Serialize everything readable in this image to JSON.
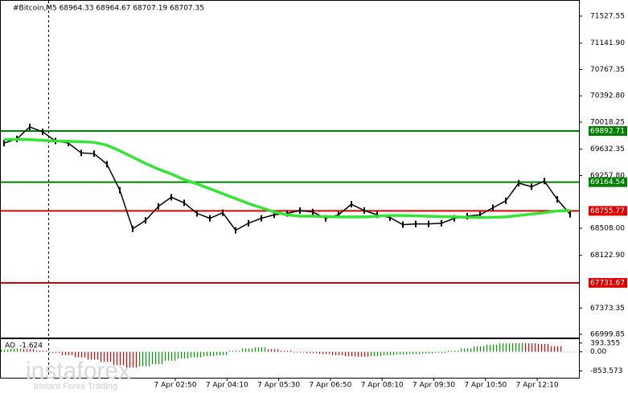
{
  "chart_data": {
    "type": "line",
    "title": "#Bitcoin,M5  68964.33 68964.67 68707.19 68707.35",
    "series": [
      {
        "name": "Price",
        "color": "#000000",
        "values": [
          69720,
          69780,
          69950,
          69880,
          69750,
          69720,
          69580,
          69570,
          69420,
          69050,
          68500,
          68620,
          68820,
          68950,
          68870,
          68720,
          68650,
          68730,
          68480,
          68580,
          68650,
          68700,
          68720,
          68760,
          68740,
          68650,
          68700,
          68850,
          68760,
          68700,
          68660,
          68560,
          68570,
          68570,
          68580,
          68650,
          68680,
          68700,
          68800,
          68900,
          69150,
          69100,
          69180,
          68920,
          68707.35
        ]
      },
      {
        "name": "MA",
        "color": "#33e633",
        "values": [
          69770,
          69775,
          69770,
          69760,
          69750,
          69745,
          69740,
          69730,
          69690,
          69610,
          69520,
          69430,
          69350,
          69280,
          69200,
          69140,
          69070,
          69000,
          68930,
          68860,
          68800,
          68740,
          68700,
          68680,
          68680,
          68675,
          68670,
          68670,
          68670,
          68680,
          68690,
          68690,
          68685,
          68680,
          68675,
          68670,
          68665,
          68660,
          68665,
          68670,
          68690,
          68710,
          68730,
          68755,
          68760
        ]
      }
    ],
    "levels": [
      {
        "value": 69892.71,
        "color": "#008000"
      },
      {
        "value": 69164.54,
        "color": "#008000"
      },
      {
        "value": 68755.77,
        "color": "#e00000"
      },
      {
        "value": 67731.67,
        "color": "#e00000"
      }
    ],
    "ylim": [
      66942,
      71699
    ],
    "yticks": [
      71527.55,
      {
        "value": 71141.9,
        "label": "71141.90"
      },
      70767.35,
      {
        "value": 70392.8,
        "label": "70392.80"
      },
      70018.25,
      69632.35,
      {
        "value": 69257.8,
        "label": "69257.80"
      },
      {
        "value": 68508,
        "label": "68508.00"
      },
      {
        "value": 68122.9,
        "label": "68122.90"
      },
      67373.35,
      66999.85
    ],
    "x_labels": [
      "7 Apr 02:50",
      "7 Apr 04:10",
      "7 Apr 05:30",
      "7 Apr 06:50",
      "7 Apr 08:10",
      "7 Apr 09:30",
      "7 Apr 10:50",
      "7 Apr 12:10"
    ],
    "indicator": {
      "name": "AO",
      "up_color": "#00a000",
      "down_color": "#e00000",
      "values": [
        100,
        150,
        120,
        50,
        -50,
        -150,
        -250,
        -350,
        -450,
        -600,
        -700,
        -650,
        -550,
        -400,
        -300,
        -250,
        -200,
        -150,
        50,
        150,
        200,
        120,
        50,
        -30,
        -60,
        -100,
        -150,
        -200,
        -220,
        -200,
        -150,
        -120,
        -100,
        -80,
        -50,
        50,
        150,
        250,
        320,
        380,
        390,
        380,
        350,
        250,
        -1.624
      ],
      "ylim": [
        -1125,
        530
      ],
      "yticks": [
        393.355,
        {
          "value": 0,
          "label": "0.00"
        },
        -853.573
      ]
    },
    "watermark": {
      "brand": "instaforex",
      "tagline": "Instant Forex Trading"
    }
  }
}
